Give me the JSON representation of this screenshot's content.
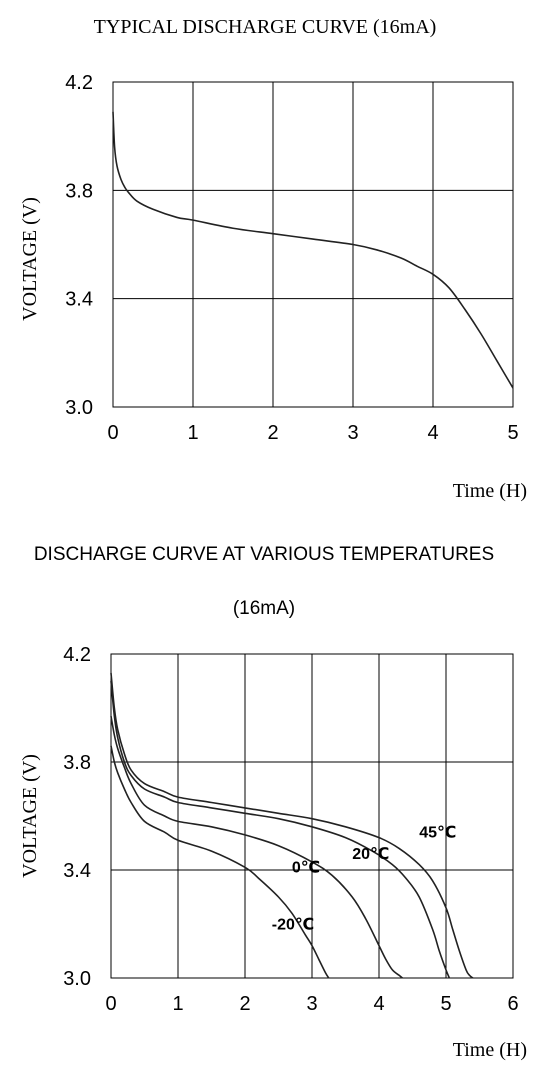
{
  "chart_data": [
    {
      "type": "line",
      "title": "TYPICAL DISCHARGE CURVE (16mA)",
      "xlabel": "Time  (H)",
      "ylabel": "VOLTAGE (V)",
      "xlim": [
        0,
        5
      ],
      "ylim": [
        3.0,
        4.2
      ],
      "xticks": [
        "0",
        "1",
        "2",
        "3",
        "4",
        "5"
      ],
      "yticks": [
        "3.0",
        "3.4",
        "3.8",
        "4.2"
      ],
      "grid": true,
      "series": [
        {
          "x": [
            0,
            0.02,
            0.05,
            0.1,
            0.15,
            0.2,
            0.3,
            0.5,
            0.8,
            1.0,
            1.5,
            2.0,
            2.5,
            3.0,
            3.3,
            3.6,
            3.8,
            4.0,
            4.2,
            4.4,
            4.6,
            4.8,
            5.0
          ],
          "y": [
            4.09,
            3.96,
            3.89,
            3.84,
            3.81,
            3.79,
            3.76,
            3.73,
            3.7,
            3.69,
            3.66,
            3.64,
            3.62,
            3.6,
            3.58,
            3.55,
            3.52,
            3.49,
            3.44,
            3.36,
            3.27,
            3.17,
            3.07
          ]
        }
      ]
    },
    {
      "type": "line",
      "title": "DISCHARGE CURVE AT VARIOUS TEMPERATURES",
      "subtitle": "(16mA)",
      "xlabel": "Time  (H)",
      "ylabel": "VOLTAGE (V)",
      "xlim": [
        0,
        6
      ],
      "ylim": [
        3.0,
        4.2
      ],
      "xticks": [
        "0",
        "1",
        "2",
        "3",
        "4",
        "5",
        "6"
      ],
      "yticks": [
        "3.0",
        "3.4",
        "3.8",
        "4.2"
      ],
      "grid": true,
      "series": [
        {
          "name": "45℃",
          "label_at": [
            4.6,
            3.52
          ],
          "x": [
            0,
            0.05,
            0.1,
            0.2,
            0.3,
            0.5,
            0.8,
            1.0,
            1.5,
            2.0,
            2.5,
            3.0,
            3.5,
            4.0,
            4.3,
            4.6,
            4.8,
            5.0,
            5.1,
            5.2,
            5.3,
            5.35,
            5.4
          ],
          "y": [
            4.13,
            4.0,
            3.92,
            3.83,
            3.77,
            3.72,
            3.69,
            3.67,
            3.65,
            3.63,
            3.61,
            3.59,
            3.56,
            3.52,
            3.48,
            3.42,
            3.36,
            3.26,
            3.18,
            3.1,
            3.03,
            3.01,
            3.0
          ]
        },
        {
          "name": "20℃",
          "label_at": [
            3.6,
            3.44
          ],
          "x": [
            0,
            0.05,
            0.1,
            0.2,
            0.3,
            0.5,
            0.8,
            1.0,
            1.5,
            2.0,
            2.5,
            3.0,
            3.5,
            3.9,
            4.2,
            4.4,
            4.6,
            4.8,
            4.9,
            5.0,
            5.05
          ],
          "y": [
            4.1,
            3.97,
            3.89,
            3.8,
            3.75,
            3.7,
            3.67,
            3.65,
            3.63,
            3.61,
            3.59,
            3.56,
            3.52,
            3.47,
            3.42,
            3.37,
            3.3,
            3.18,
            3.1,
            3.03,
            3.0
          ]
        },
        {
          "name": "0℃",
          "label_at": [
            2.7,
            3.39
          ],
          "x": [
            0,
            0.05,
            0.1,
            0.2,
            0.3,
            0.5,
            0.8,
            1.0,
            1.5,
            2.0,
            2.5,
            3.0,
            3.3,
            3.6,
            3.8,
            4.0,
            4.1,
            4.2,
            4.3,
            4.35
          ],
          "y": [
            3.97,
            3.9,
            3.85,
            3.78,
            3.72,
            3.64,
            3.6,
            3.58,
            3.56,
            3.53,
            3.49,
            3.43,
            3.38,
            3.3,
            3.22,
            3.12,
            3.07,
            3.03,
            3.01,
            3.0
          ]
        },
        {
          "name": "-20℃",
          "label_at": [
            2.4,
            3.18
          ],
          "x": [
            0,
            0.05,
            0.1,
            0.2,
            0.3,
            0.5,
            0.8,
            1.0,
            1.5,
            2.0,
            2.2,
            2.5,
            2.7,
            2.9,
            3.0,
            3.1,
            3.2,
            3.25
          ],
          "y": [
            3.86,
            3.8,
            3.76,
            3.7,
            3.65,
            3.58,
            3.54,
            3.51,
            3.47,
            3.41,
            3.37,
            3.3,
            3.24,
            3.16,
            3.12,
            3.07,
            3.02,
            3.0
          ]
        }
      ]
    }
  ]
}
